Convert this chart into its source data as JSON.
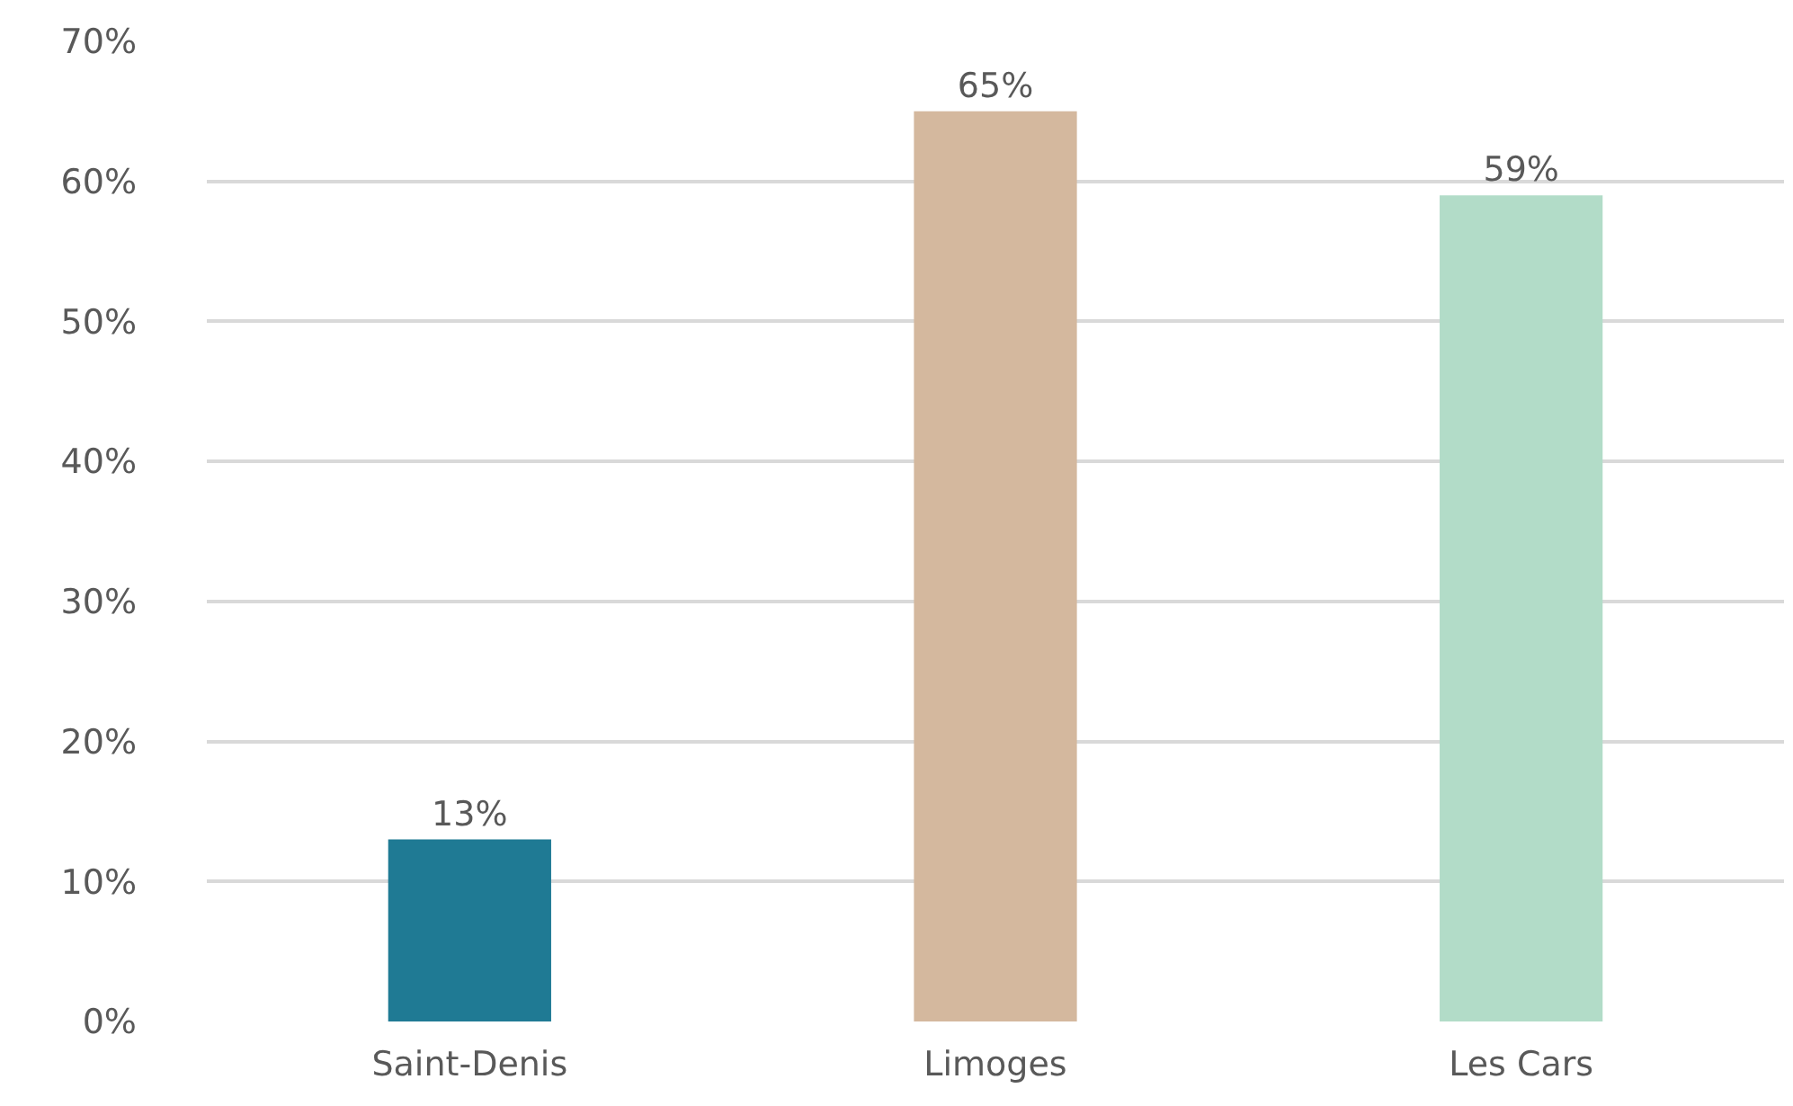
{
  "chart_data": {
    "type": "bar",
    "categories": [
      "Saint-Denis",
      "Limoges",
      "Les Cars"
    ],
    "values": [
      13,
      65,
      59
    ],
    "colors": [
      "#1f7a94",
      "#d4b89e",
      "#b2dcc8"
    ],
    "value_labels": [
      "13%",
      "65%",
      "59%"
    ],
    "ylim": [
      0,
      70
    ],
    "yticks": [
      {
        "value": 0,
        "label": "0%"
      },
      {
        "value": 10,
        "label": "10%"
      },
      {
        "value": 20,
        "label": "20%"
      },
      {
        "value": 30,
        "label": "30%"
      },
      {
        "value": 40,
        "label": "40%"
      },
      {
        "value": 50,
        "label": "50%"
      },
      {
        "value": 60,
        "label": "60%"
      },
      {
        "value": 70,
        "label": "70%"
      }
    ],
    "grid": "y"
  }
}
